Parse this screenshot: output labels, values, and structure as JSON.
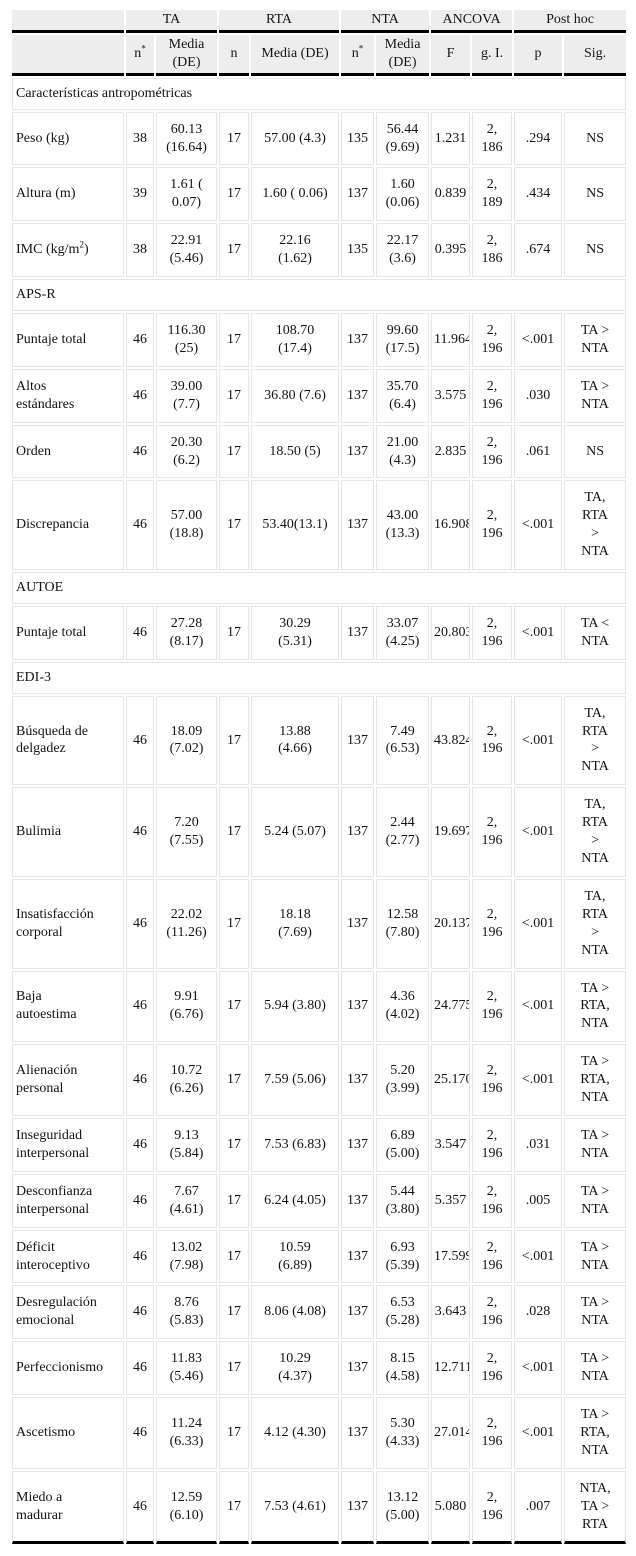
{
  "colors": {
    "header_bg": "#ededed",
    "heavy_rule": "#000000",
    "grid_line": "#e6e6e6",
    "text": "#141414",
    "page_bg": "#ffffff"
  },
  "table": {
    "group_headers": [
      {
        "label": ""
      },
      {
        "label": "TA"
      },
      {
        "label": "RTA"
      },
      {
        "label": "NTA"
      },
      {
        "label": "ANCOVA"
      },
      {
        "label": "Post hoc"
      }
    ],
    "col_headers": [
      {
        "base": "",
        "sup": ""
      },
      {
        "base": "n",
        "sup": "*"
      },
      {
        "base": "Media\n(DE)",
        "sup": ""
      },
      {
        "base": "n",
        "sup": ""
      },
      {
        "base": "Media (DE)",
        "sup": ""
      },
      {
        "base": "n",
        "sup": "*"
      },
      {
        "base": "Media\n(DE)",
        "sup": ""
      },
      {
        "base": "F",
        "sup": ""
      },
      {
        "base": "g. I.",
        "sup": ""
      },
      {
        "base": "p",
        "sup": ""
      },
      {
        "base": "Sig.",
        "sup": ""
      }
    ],
    "sections": [
      {
        "title": "Características antropométricas",
        "rows": [
          {
            "label": "Peso (kg)",
            "cells": [
              "38",
              "60.13\n(16.64)",
              "17",
              "57.00 (4.3)",
              "135",
              "56.44\n(9.69)",
              "1.231",
              "2,\n186",
              ".294",
              "NS"
            ]
          },
          {
            "label": "Altura (m)",
            "cells": [
              "39",
              "1.61 (\n0.07)",
              "17",
              "1.60 ( 0.06)",
              "137",
              "1.60\n(0.06)",
              "0.839",
              "2,\n189",
              ".434",
              "NS"
            ]
          },
          {
            "label": "IMC (kg/m^2)",
            "cells": [
              "38",
              "22.91\n(5.46)",
              "17",
              "22.16\n(1.62)",
              "135",
              "22.17\n(3.6)",
              "0.395",
              "2,\n186",
              ".674",
              "NS"
            ]
          }
        ]
      },
      {
        "title": "APS-R",
        "rows": [
          {
            "label": "Puntaje total",
            "cells": [
              "46",
              "116.30\n(25)",
              "17",
              "108.70\n(17.4)",
              "137",
              "99.60\n(17.5)",
              "11.964",
              "2,\n196",
              "<.001",
              "TA >\nNTA"
            ]
          },
          {
            "label": "Altos\nestándares",
            "cells": [
              "46",
              "39.00\n(7.7)",
              "17",
              "36.80 (7.6)",
              "137",
              "35.70\n(6.4)",
              "3.575",
              "2,\n196",
              ".030",
              "TA >\nNTA"
            ]
          },
          {
            "label": "Orden",
            "cells": [
              "46",
              "20.30\n(6.2)",
              "17",
              "18.50 (5)",
              "137",
              "21.00\n(4.3)",
              "2.835",
              "2,\n196",
              ".061",
              "NS"
            ]
          },
          {
            "label": "Discrepancia",
            "cells": [
              "46",
              "57.00\n(18.8)",
              "17",
              "53.40(13.1)",
              "137",
              "43.00\n(13.3)",
              "16.908",
              "2,\n196",
              "<.001",
              "TA,\nRTA\n>\nNTA"
            ]
          }
        ]
      },
      {
        "title": "AUTOE",
        "rows": [
          {
            "label": "Puntaje total",
            "cells": [
              "46",
              "27.28\n(8.17)",
              "17",
              "30.29\n(5.31)",
              "137",
              "33.07\n(4.25)",
              "20.803",
              "2,\n196",
              "<.001",
              "TA <\nNTA"
            ]
          }
        ]
      },
      {
        "title": "EDI-3",
        "rows": [
          {
            "label": "Búsqueda de\ndelgadez",
            "cells": [
              "46",
              "18.09\n(7.02)",
              "17",
              "13.88\n(4.66)",
              "137",
              "7.49\n(6.53)",
              "43.824",
              "2,\n196",
              "<.001",
              "TA,\nRTA\n>\nNTA"
            ]
          },
          {
            "label": "Bulimia",
            "cells": [
              "46",
              "7.20\n(7.55)",
              "17",
              "5.24 (5.07)",
              "137",
              "2.44\n(2.77)",
              "19.697",
              "2,\n196",
              "<.001",
              "TA,\nRTA\n>\nNTA"
            ]
          },
          {
            "label": "Insatisfacción\ncorporal",
            "cells": [
              "46",
              "22.02\n(11.26)",
              "17",
              "18.18\n(7.69)",
              "137",
              "12.58\n(7.80)",
              "20.137",
              "2,\n196",
              "<.001",
              "TA,\nRTA\n>\nNTA"
            ]
          },
          {
            "label": "Baja\nautoestima",
            "cells": [
              "46",
              "9.91\n(6.76)",
              "17",
              "5.94 (3.80)",
              "137",
              "4.36\n(4.02)",
              "24.775",
              "2,\n196",
              "<.001",
              "TA >\nRTA,\nNTA"
            ]
          },
          {
            "label": "Alienación\npersonal",
            "cells": [
              "46",
              "10.72\n(6.26)",
              "17",
              "7.59 (5.06)",
              "137",
              "5.20\n(3.99)",
              "25.170",
              "2,\n196",
              "<.001",
              "TA >\nRTA,\nNTA"
            ]
          },
          {
            "label": "Inseguridad\ninterpersonal",
            "cells": [
              "46",
              "9.13\n(5.84)",
              "17",
              "7.53 (6.83)",
              "137",
              "6.89\n(5.00)",
              "3.547",
              "2,\n196",
              ".031",
              "TA >\nNTA"
            ]
          },
          {
            "label": "Desconfianza\ninterpersonal",
            "cells": [
              "46",
              "7.67\n(4.61)",
              "17",
              "6.24 (4.05)",
              "137",
              "5.44\n(3.80)",
              "5.357",
              "2,\n196",
              ".005",
              "TA >\nNTA"
            ]
          },
          {
            "label": "Déficit\ninteroceptivo",
            "cells": [
              "46",
              "13.02\n(7.98)",
              "17",
              "10.59\n(6.89)",
              "137",
              "6.93\n(5.39)",
              "17.599",
              "2,\n196",
              "<.001",
              "TA >\nNTA"
            ]
          },
          {
            "label": "Desregulación\nemocional",
            "cells": [
              "46",
              "8.76\n(5.83)",
              "17",
              "8.06 (4.08)",
              "137",
              "6.53\n(5.28)",
              "3.643",
              "2,\n196",
              ".028",
              "TA >\nNTA"
            ]
          },
          {
            "label": "Perfeccionismo",
            "cells": [
              "46",
              "11.83\n(5.46)",
              "17",
              "10.29\n(4.37)",
              "137",
              "8.15\n(4.58)",
              "12.711",
              "2,\n196",
              "<.001",
              "TA >\nNTA"
            ]
          },
          {
            "label": "Ascetismo",
            "cells": [
              "46",
              "11.24\n(6.33)",
              "17",
              "4.12 (4.30)",
              "137",
              "5.30\n(4.33)",
              "27.014",
              "2,\n196",
              "<.001",
              "TA >\nRTA,\nNTA"
            ]
          },
          {
            "label": "Miedo a\nmadurar",
            "cells": [
              "46",
              "12.59\n(6.10)",
              "17",
              "7.53 (4.61)",
              "137",
              "13.12\n(5.00)",
              "5.080",
              "2,\n196",
              ".007",
              "NTA,\nTA >\nRTA"
            ]
          }
        ]
      }
    ]
  }
}
